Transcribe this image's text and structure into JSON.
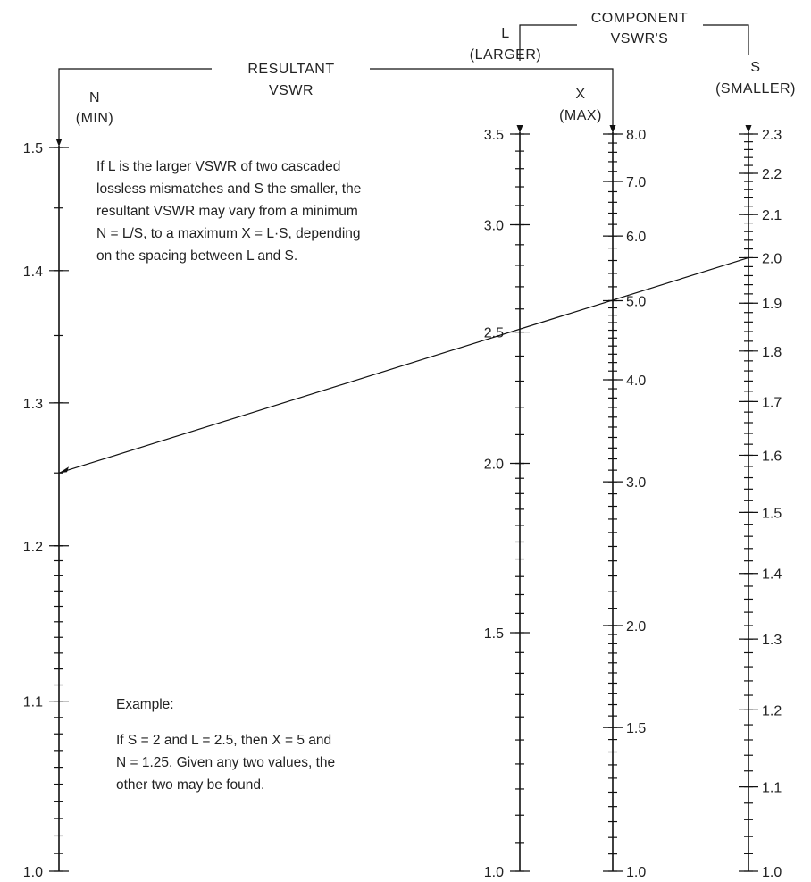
{
  "header": {
    "resultant_title_1": "RESULTANT",
    "resultant_title_2": "VSWR",
    "component_title_1": "COMPONENT",
    "component_title_2": "VSWR'S"
  },
  "scales": {
    "n": {
      "letter": "N",
      "sub": "(MIN)",
      "min": 1.0,
      "max": 1.5,
      "labels": [
        "1.0",
        "1.1",
        "1.2",
        "1.3",
        "1.4",
        "1.5"
      ]
    },
    "l": {
      "letter": "L",
      "sub": "(LARGER)",
      "min": 1.0,
      "max": 3.5,
      "labels": [
        "1.0",
        "1.5",
        "2.0",
        "2.5",
        "3.0",
        "3.5"
      ]
    },
    "x": {
      "letter": "X",
      "sub": "(MAX)",
      "min": 1.0,
      "max": 8.0,
      "labels": [
        "1.0",
        "1.5",
        "2.0",
        "3.0",
        "4.0",
        "5.0",
        "6.0",
        "7.0",
        "8.0"
      ]
    },
    "s": {
      "letter": "S",
      "sub": "(SMALLER)",
      "min": 1.0,
      "max": 2.3,
      "labels": [
        "1.0",
        "1.1",
        "1.2",
        "1.3",
        "1.4",
        "1.5",
        "1.6",
        "1.7",
        "1.8",
        "1.9",
        "2.0",
        "2.1",
        "2.2",
        "2.3"
      ]
    }
  },
  "description": [
    "If L is the larger VSWR of two cascaded",
    "lossless mismatches and S the smaller, the",
    "resultant VSWR may vary from a minimum",
    "N = L/S, to a maximum X = L·S, depending",
    "on the spacing between L and S."
  ],
  "example": {
    "title": "Example:",
    "lines": [
      "If S = 2 and L = 2.5, then X = 5 and",
      "N = 1.25. Given any two values, the",
      "other two may be found."
    ],
    "s": 2.0,
    "l": 2.5,
    "x": 5.0,
    "n": 1.25
  }
}
